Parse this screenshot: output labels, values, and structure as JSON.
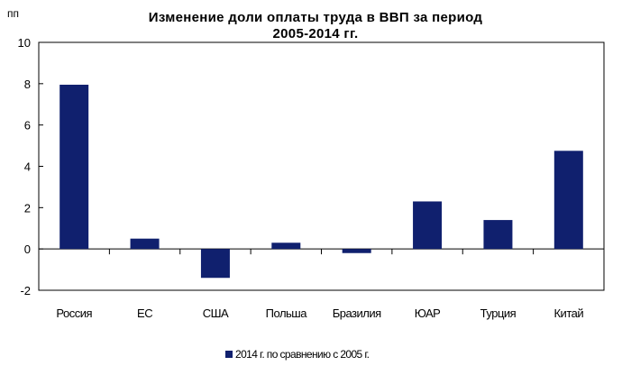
{
  "chart_data": {
    "type": "bar",
    "title_line1": "Изменение доли оплаты труда в ВВП за период",
    "title_line2": "2005-2014 гг.",
    "ylabel": "пп",
    "categories": [
      "Россия",
      "ЕС",
      "США",
      "Польша",
      "Бразилия",
      "ЮАР",
      "Турция",
      "Китай"
    ],
    "series": [
      {
        "name": "2014 г. по сравнению с 2005 г.",
        "values": [
          7.95,
          0.5,
          -1.4,
          0.3,
          -0.2,
          2.3,
          1.4,
          4.75
        ]
      }
    ],
    "ylim": [
      -2,
      10
    ],
    "yticks": [
      -2,
      0,
      2,
      4,
      6,
      8,
      10
    ],
    "grid": false,
    "legend_position": "bottom",
    "bar_color": "#10206e"
  }
}
